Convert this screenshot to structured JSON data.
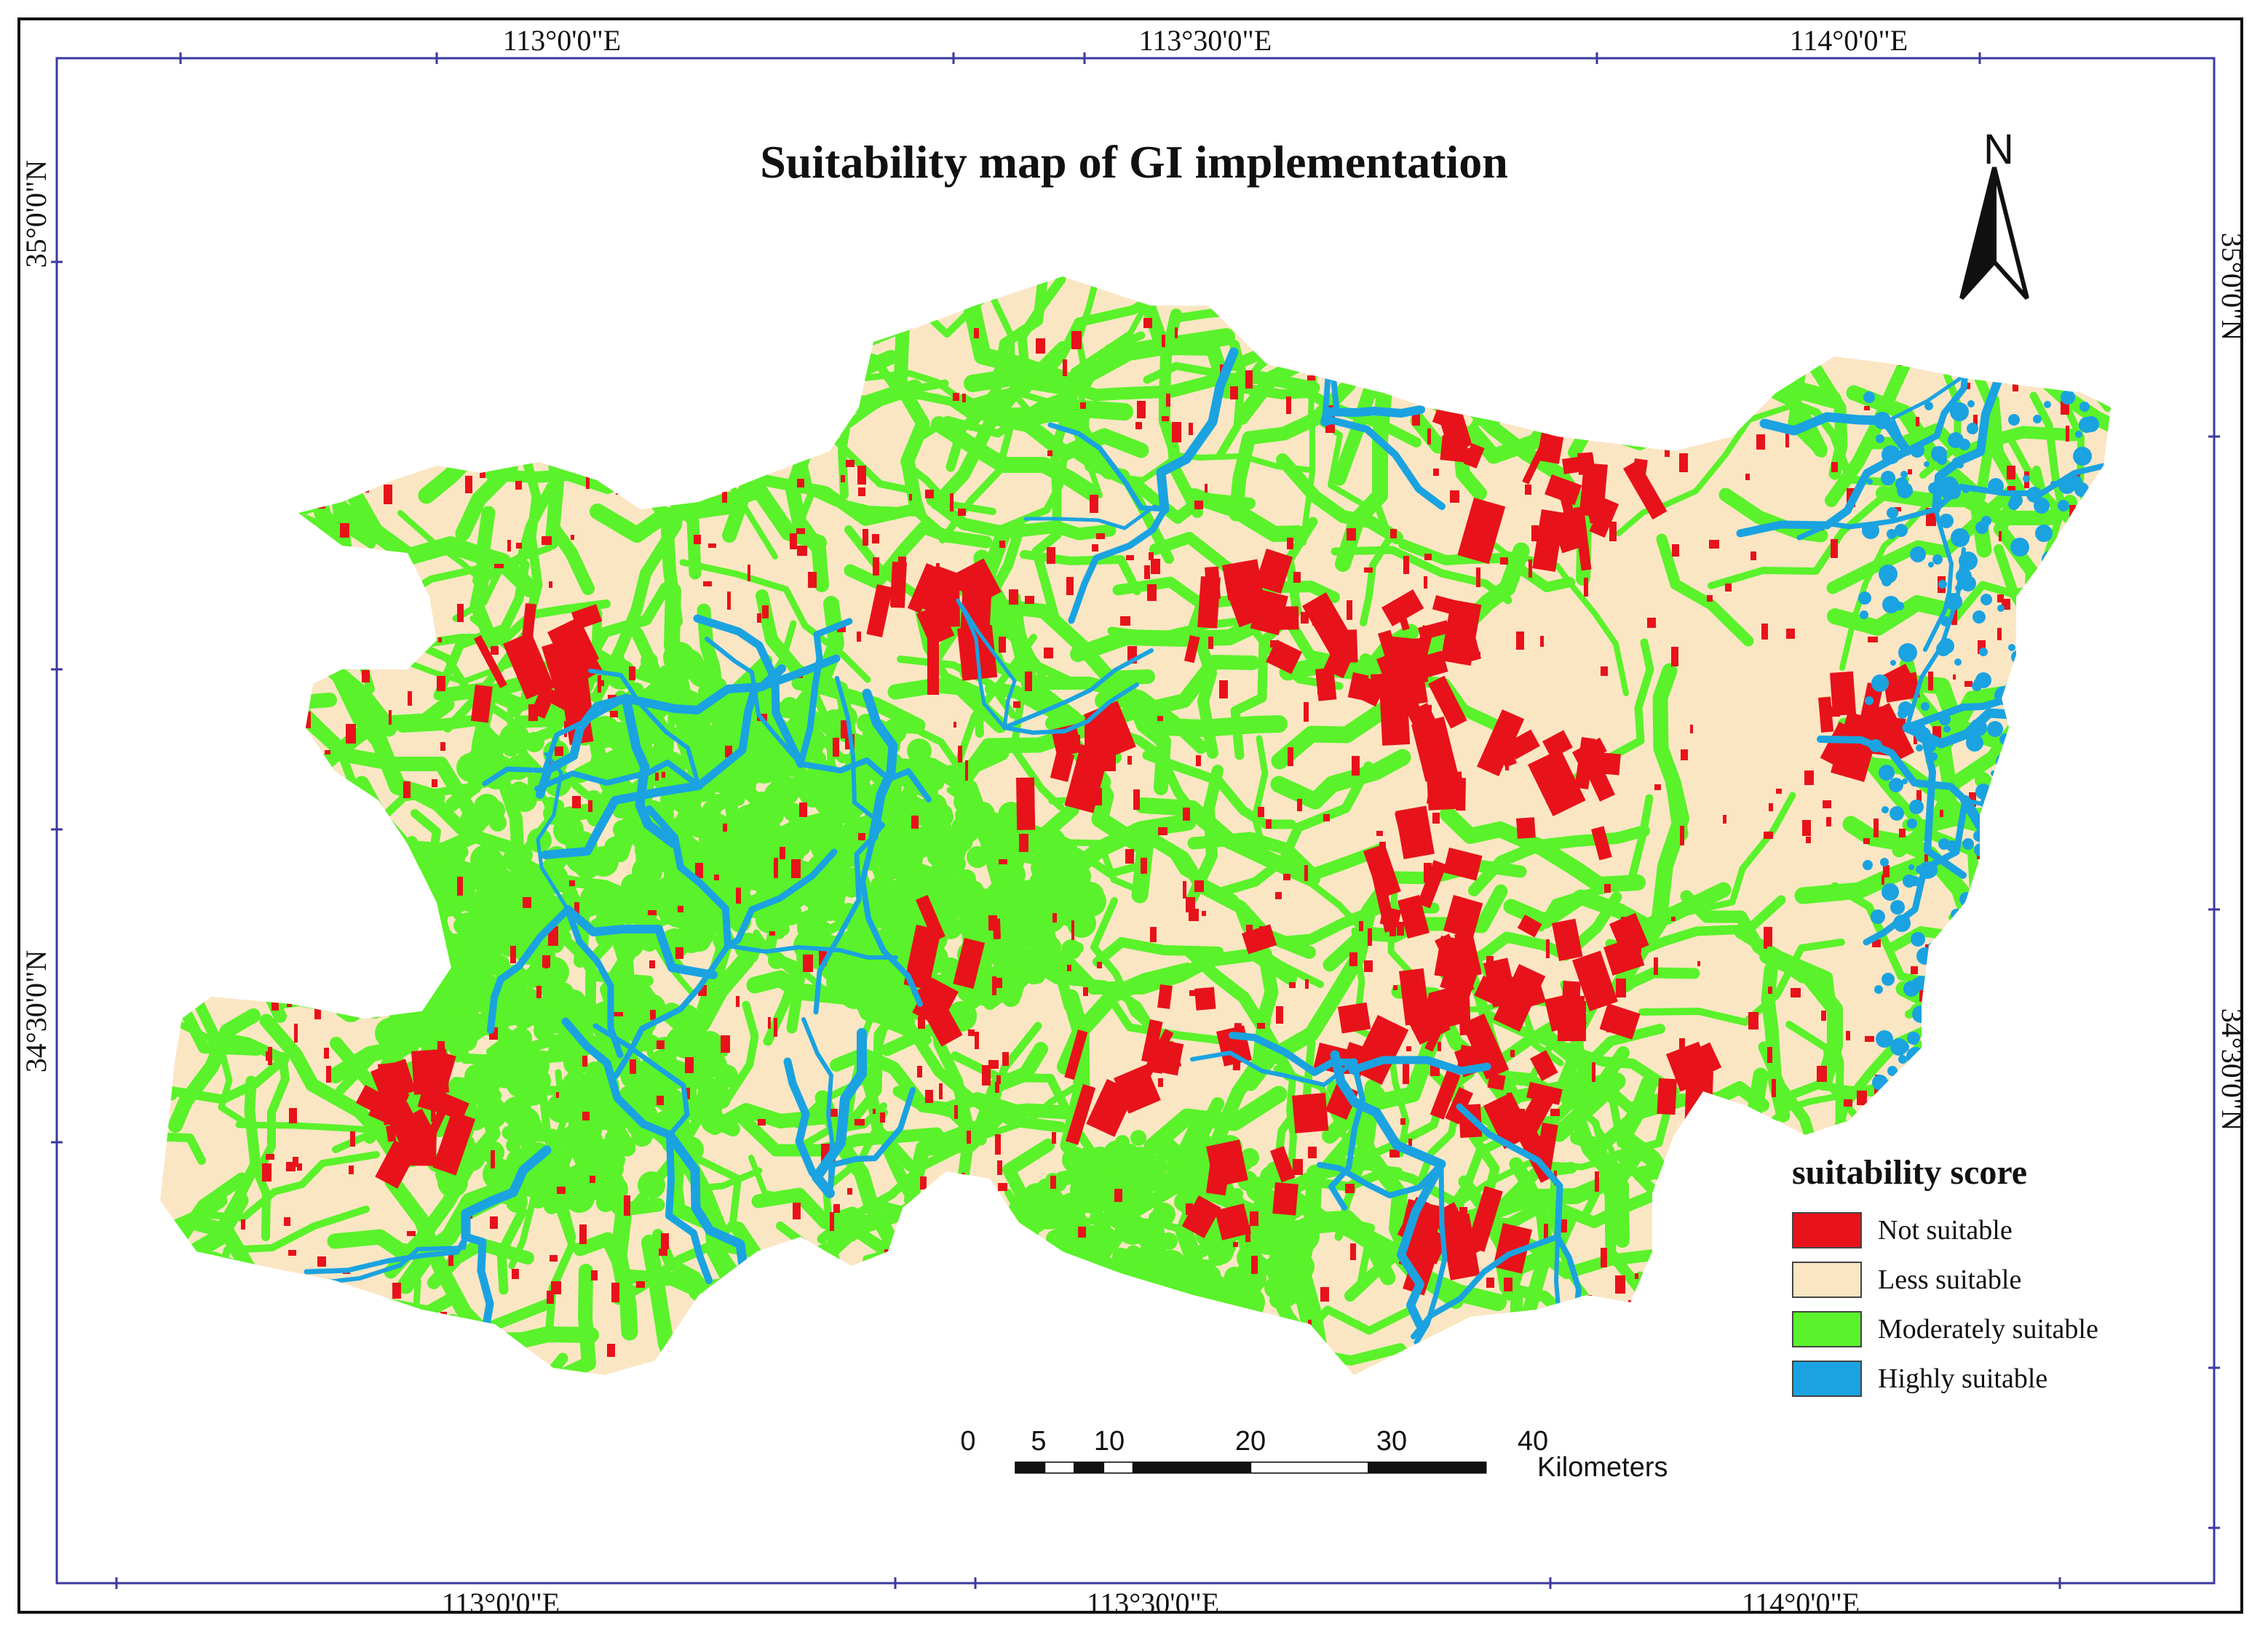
{
  "title": "Suitability map of GI implementation",
  "coordinates": {
    "top": [
      "113°0'0\"E",
      "113°30'0\"E",
      "114°0'0\"E"
    ],
    "bottom": [
      "113°0'0\"E",
      "113°30'0\"E",
      "114°0'0\"E"
    ],
    "left": [
      "35°0'0\"N",
      "34°30'0\"N"
    ],
    "right": [
      "35°0'0\"N",
      "34°30'0\"N"
    ]
  },
  "north_arrow": {
    "label": "N"
  },
  "legend": {
    "title": "suitability score",
    "items": [
      {
        "label": "Not suitable",
        "color": "#e8121a"
      },
      {
        "label": "Less suitable",
        "color": "#fbe6c4"
      },
      {
        "label": "Moderately suitable",
        "color": "#5af22a"
      },
      {
        "label": "Highly suitable",
        "color": "#1aa3e0"
      }
    ]
  },
  "scale_bar": {
    "ticks": [
      "0",
      "5",
      "10",
      "20",
      "30",
      "40"
    ],
    "tick_values_km": [
      0,
      5,
      10,
      20,
      30,
      40
    ],
    "unit": "Kilometers"
  },
  "colors": {
    "frame": "#111111",
    "inner_frame": "#3a3aa0",
    "not_suitable": "#e8121a",
    "less_suitable": "#fbe6c4",
    "moderately_suitable": "#5af22a",
    "highly_suitable": "#1aa3e0"
  }
}
